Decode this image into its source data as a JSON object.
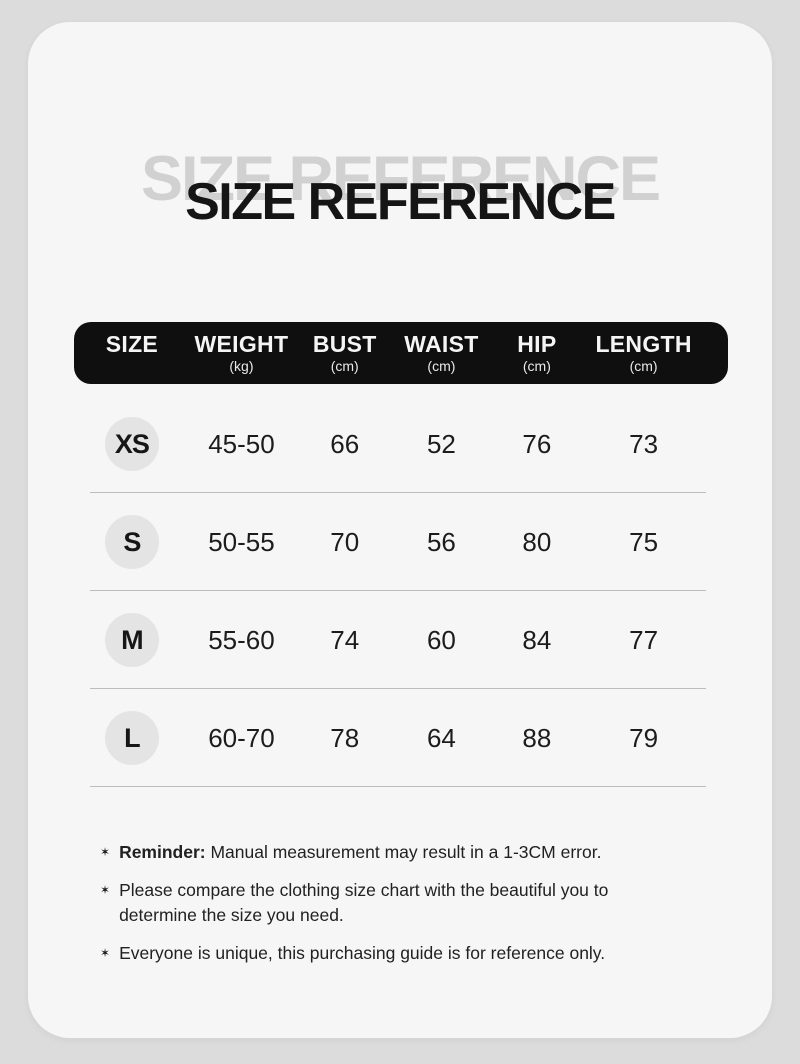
{
  "title": {
    "main": "SIZE REFERENCE",
    "ghost": "SIZE REFERENCE"
  },
  "table": {
    "columns": [
      {
        "label": "SIZE",
        "unit": ""
      },
      {
        "label": "WEIGHT",
        "unit": "(kg)"
      },
      {
        "label": "BUST",
        "unit": "(cm)"
      },
      {
        "label": "WAIST",
        "unit": "(cm)"
      },
      {
        "label": "HIP",
        "unit": "(cm)"
      },
      {
        "label": "LENGTH",
        "unit": "(cm)"
      }
    ],
    "rows": [
      {
        "size": "XS",
        "weight": "45-50",
        "bust": "66",
        "waist": "52",
        "hip": "76",
        "length": "73"
      },
      {
        "size": "S",
        "weight": "50-55",
        "bust": "70",
        "waist": "56",
        "hip": "80",
        "length": "75"
      },
      {
        "size": "M",
        "weight": "55-60",
        "bust": "74",
        "waist": "60",
        "hip": "84",
        "length": "77"
      },
      {
        "size": "L",
        "weight": "60-70",
        "bust": "78",
        "waist": "64",
        "hip": "88",
        "length": "79"
      }
    ]
  },
  "notes": {
    "bullet": "✶",
    "items": [
      {
        "prefix": "Reminder:",
        "text": " Manual measurement may result in a 1-3CM error."
      },
      {
        "prefix": "",
        "text": "Please compare the clothing size chart with the beautiful you to determine the size you need."
      },
      {
        "prefix": "",
        "text": "Everyone is unique, this purchasing guide is for reference only."
      }
    ]
  },
  "colors": {
    "page_bg": "#dcdcdc",
    "card_bg": "#f6f6f6",
    "bar_bg": "#0f0f0f",
    "badge_bg": "#e4e4e4",
    "ghost_title": "#d1d1d1",
    "title_text": "#151515",
    "body_text": "#1c1c1c",
    "divider": "#bdbdbd"
  }
}
